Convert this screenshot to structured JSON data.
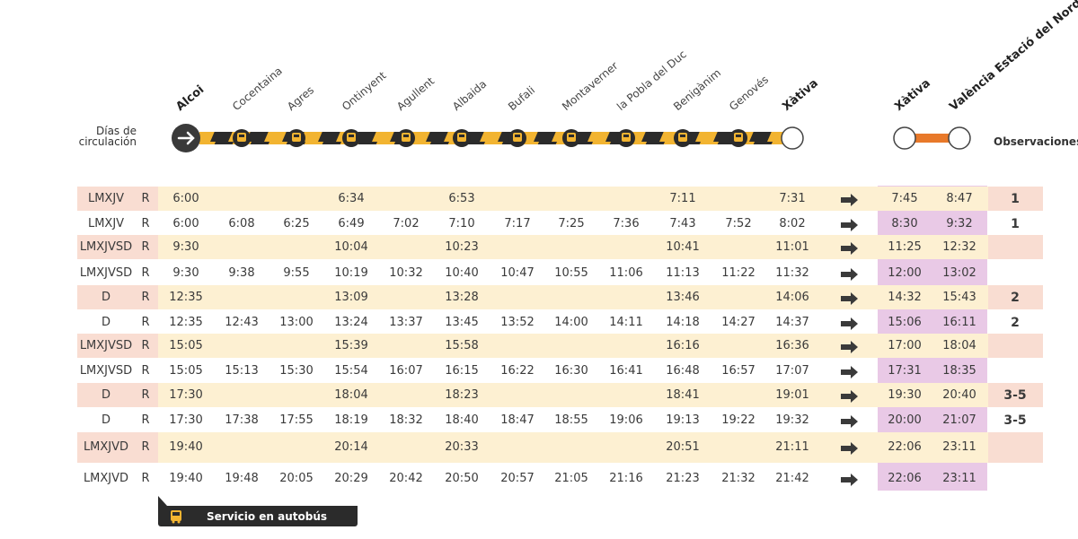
{
  "header": {
    "days_label_line1": "Días de",
    "days_label_line2": "circulación",
    "observations_label": "Observaciones",
    "stations": [
      {
        "name": "Alcoi",
        "bold": true
      },
      {
        "name": "Cocentaina",
        "bold": false
      },
      {
        "name": "Agres",
        "bold": false
      },
      {
        "name": "Ontinyent",
        "bold": false
      },
      {
        "name": "Agullent",
        "bold": false
      },
      {
        "name": "Albaida",
        "bold": false
      },
      {
        "name": "Bufali",
        "bold": false
      },
      {
        "name": "Montaverner",
        "bold": false
      },
      {
        "name": "la Pobla del Duc",
        "bold": false
      },
      {
        "name": "Benigànim",
        "bold": false
      },
      {
        "name": "Genovés",
        "bold": false
      },
      {
        "name": "Xàtiva",
        "bold": true
      }
    ],
    "train_stations": [
      {
        "name": "Xàtiva",
        "bold": true
      },
      {
        "name": "València Estació del Nord",
        "bold": true
      }
    ]
  },
  "colors": {
    "bus_line_yellow": "#f2b431",
    "train_line_orange": "#e8792a",
    "band_yellow": "#fdf0d2",
    "band_salmon": "#f9ddd2",
    "train_column_pink": "#e9c9e6",
    "dark": "#2b2b2b"
  },
  "rows": [
    {
      "days": "LMXJV",
      "r": "R",
      "times": [
        "6:00",
        "",
        "",
        "6:34",
        "",
        "6:53",
        "",
        "",
        "",
        "7:11",
        "",
        "7:31"
      ],
      "train": [
        "7:45",
        "8:47"
      ],
      "obs": "1"
    },
    {
      "days": "LMXJV",
      "r": "R",
      "times": [
        "6:00",
        "6:08",
        "6:25",
        "6:49",
        "7:02",
        "7:10",
        "7:17",
        "7:25",
        "7:36",
        "7:43",
        "7:52",
        "8:02"
      ],
      "train": [
        "8:30",
        "9:32"
      ],
      "obs": "1"
    },
    {
      "days": "LMXJVSD",
      "r": "R",
      "times": [
        "9:30",
        "",
        "",
        "10:04",
        "",
        "10:23",
        "",
        "",
        "",
        "10:41",
        "",
        "11:01"
      ],
      "train": [
        "11:25",
        "12:32"
      ],
      "obs": ""
    },
    {
      "days": "LMXJVSD",
      "r": "R",
      "times": [
        "9:30",
        "9:38",
        "9:55",
        "10:19",
        "10:32",
        "10:40",
        "10:47",
        "10:55",
        "11:06",
        "11:13",
        "11:22",
        "11:32"
      ],
      "train": [
        "12:00",
        "13:02"
      ],
      "obs": ""
    },
    {
      "days": "D",
      "r": "R",
      "times": [
        "12:35",
        "",
        "",
        "13:09",
        "",
        "13:28",
        "",
        "",
        "",
        "13:46",
        "",
        "14:06"
      ],
      "train": [
        "14:32",
        "15:43"
      ],
      "obs": "2"
    },
    {
      "days": "D",
      "r": "R",
      "times": [
        "12:35",
        "12:43",
        "13:00",
        "13:24",
        "13:37",
        "13:45",
        "13:52",
        "14:00",
        "14:11",
        "14:18",
        "14:27",
        "14:37"
      ],
      "train": [
        "15:06",
        "16:11"
      ],
      "obs": "2"
    },
    {
      "days": "LMXJVSD",
      "r": "R",
      "times": [
        "15:05",
        "",
        "",
        "15:39",
        "",
        "15:58",
        "",
        "",
        "",
        "16:16",
        "",
        "16:36"
      ],
      "train": [
        "17:00",
        "18:04"
      ],
      "obs": ""
    },
    {
      "days": "LMXJVSD",
      "r": "R",
      "times": [
        "15:05",
        "15:13",
        "15:30",
        "15:54",
        "16:07",
        "16:15",
        "16:22",
        "16:30",
        "16:41",
        "16:48",
        "16:57",
        "17:07"
      ],
      "train": [
        "17:31",
        "18:35"
      ],
      "obs": ""
    },
    {
      "days": "D",
      "r": "R",
      "times": [
        "17:30",
        "",
        "",
        "18:04",
        "",
        "18:23",
        "",
        "",
        "",
        "18:41",
        "",
        "19:01"
      ],
      "train": [
        "19:30",
        "20:40"
      ],
      "obs": "3-5"
    },
    {
      "days": "D",
      "r": "R",
      "times": [
        "17:30",
        "17:38",
        "17:55",
        "18:19",
        "18:32",
        "18:40",
        "18:47",
        "18:55",
        "19:06",
        "19:13",
        "19:22",
        "19:32"
      ],
      "train": [
        "20:00",
        "21:07"
      ],
      "obs": "3-5"
    },
    {
      "days": "LMXJVD",
      "r": "R",
      "times": [
        "19:40",
        "",
        "",
        "20:14",
        "",
        "20:33",
        "",
        "",
        "",
        "20:51",
        "",
        "21:11"
      ],
      "train": [
        "22:06",
        "23:11"
      ],
      "obs": ""
    },
    {
      "days": "LMXJVD",
      "r": "R",
      "times": [
        "19:40",
        "19:48",
        "20:05",
        "20:29",
        "20:42",
        "20:50",
        "20:57",
        "21:05",
        "21:16",
        "21:23",
        "21:32",
        "21:42"
      ],
      "train": [
        "22:06",
        "23:11"
      ],
      "obs": ""
    }
  ],
  "legend": {
    "icon": "bus-icon",
    "label": "Servicio en autobús"
  }
}
